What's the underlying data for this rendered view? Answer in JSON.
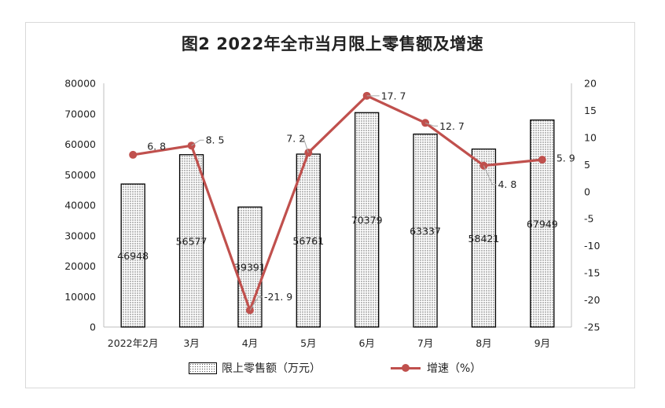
{
  "chart_data": {
    "type": "bar+line",
    "title": "图2    2022年全市当月限上零售额及增速",
    "categories": [
      "2022年2月",
      "3月",
      "4月",
      "5月",
      "6月",
      "7月",
      "8月",
      "9月"
    ],
    "series": [
      {
        "name": "限上零售额（万元）",
        "type": "bar",
        "axis": "left",
        "values": [
          46948,
          56577,
          39391,
          56761,
          70379,
          63337,
          58421,
          67949
        ],
        "labels": [
          "46948",
          "56577",
          "39391",
          "56761",
          "70379",
          "63337",
          "58421",
          "67949"
        ]
      },
      {
        "name": "增速（%）",
        "type": "line",
        "axis": "right",
        "values": [
          6.8,
          8.5,
          -21.9,
          7.2,
          17.7,
          12.7,
          4.8,
          5.9
        ],
        "labels": [
          "6. 8",
          "8. 5",
          "-21. 9",
          "7. 2",
          "17. 7",
          "12. 7",
          "4. 8",
          "5. 9"
        ]
      }
    ],
    "y_left": {
      "range": [
        0,
        80000
      ],
      "ticks": [
        "0",
        "10000",
        "20000",
        "30000",
        "40000",
        "50000",
        "60000",
        "70000",
        "80000"
      ]
    },
    "y_right": {
      "range": [
        -25,
        20
      ],
      "ticks": [
        "-25",
        "-20",
        "-15",
        "-10",
        "-5",
        "0",
        "5",
        "10",
        "15",
        "20"
      ]
    },
    "grid": false,
    "legend_position": "bottom",
    "colors": {
      "line": "#c0504d",
      "bar_border": "#000000",
      "bar_pattern": "#555555"
    }
  }
}
